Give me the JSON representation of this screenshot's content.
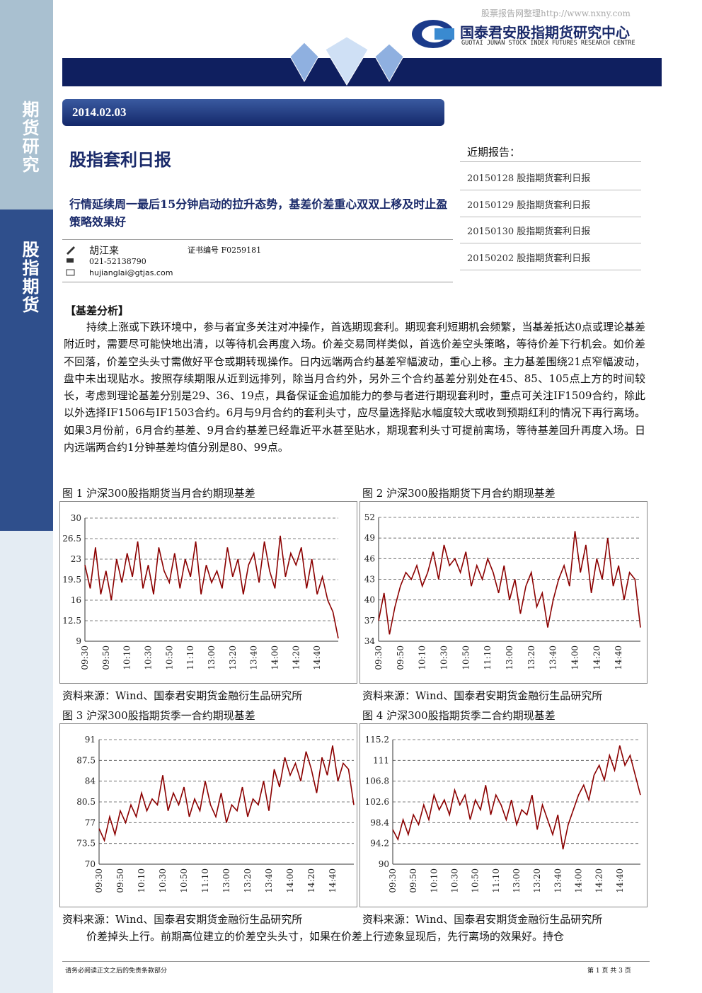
{
  "header": {
    "watermark": "股票报告网整理http://www.nxny.com",
    "logo_cn": "国泰君安股指期货研究中心",
    "logo_en": "GUOTAI JUNAN STOCK INDEX FUTURES RESEARCH CENTRE"
  },
  "sidebar": [
    "期货研究",
    "股指期货"
  ],
  "date": "2014.02.03",
  "title": "股指套利日报",
  "subtitle": "行情延续周一最后15分钟启动的拉升态势，基差价差重心双双上移及时止盈策略效果好",
  "author": {
    "name": "胡江来",
    "cert": "证书编号  F0259181",
    "phone": "021-52138790",
    "email": "hujianglai@gtjas.com"
  },
  "recent": {
    "heading": "近期报告：",
    "items": [
      "20150128 股指期货套利日报",
      "20150129 股指期货套利日报",
      "20150130 股指期货套利日报",
      "20150202 股指期货套利日报"
    ]
  },
  "section_heading": "【基差分析】",
  "paragraph": "持续上涨或下跌环境中，参与者宜多关注对冲操作，首选期现套利。期现套利短期机会频繁，当基差抵达0点或理论基差附近时，需要尽可能快地出清，以等待机会再度入场。价差交易同样类似，首选价差空头策略，等待价差下行机会。如价差不回落，价差空头头寸需做好平仓或期转现操作。日内远端两合约基差窄幅波动，重心上移。主力基差围绕21点窄幅波动，盘中未出现贴水。按照存续期限从近到远排列，除当月合约外，另外三个合约基差分别处在45、85、105点上方的时间较长，考虑到理论基差分别是29、36、19点，具备保证金追加能力的参与者进行期现套利时，重点可关注IF1509合约，除此以外选择IF1506与IF1503合约。6月与9月合约的套利头寸，应尽量选择贴水幅度较大或收到预期红利的情况下再行离场。如果3月份前，6月合约基差、9月合约基差已经靠近平水甚至贴水，期现套利头寸可提前离场，等待基差回升再度入场。日内远端两合约1分钟基差均值分别是80、99点。",
  "continuation": "价差掉头上行。前期高位建立的价差空头头寸，如果在价差上行迹象显现后，先行离场的效果好。持仓",
  "footer": {
    "disclaimer": "请务必阅读正文之后的免责条款部分",
    "page": "第 1 页 共 3 页"
  },
  "chart_data": [
    {
      "type": "line",
      "title": "图 1 沪深300股指期货当月合约期现基差",
      "source": "资料来源：Wind、国泰君安期货金融衍生品研究所",
      "color": "#8b0000",
      "categories": [
        "09:30",
        null,
        null,
        null,
        "09:50",
        null,
        null,
        null,
        "10:10",
        null,
        null,
        null,
        "10:30",
        null,
        null,
        null,
        "10:50",
        null,
        null,
        null,
        "11:10",
        null,
        null,
        null,
        "13:00",
        null,
        null,
        null,
        "13:20",
        null,
        null,
        null,
        "13:40",
        null,
        null,
        null,
        "14:00",
        null,
        null,
        null,
        "14:20",
        null,
        null,
        null,
        "14:40",
        null,
        null,
        null,
        null
      ],
      "values": [
        22,
        18,
        25,
        17,
        21,
        16,
        23,
        19,
        24,
        20,
        26,
        18,
        22,
        17,
        25,
        21,
        19,
        24,
        18,
        23,
        20,
        26,
        17,
        22,
        19,
        21,
        18,
        25,
        20,
        23,
        17,
        22,
        24,
        19,
        26,
        21,
        18,
        27,
        20,
        24,
        22,
        25,
        18,
        23,
        17,
        20,
        16,
        14,
        9.5
      ],
      "ylim": [
        9,
        30
      ],
      "yticks": [
        9,
        12.5,
        16,
        19.5,
        23,
        26.5,
        30
      ],
      "grid": true
    },
    {
      "type": "line",
      "title": "图 2 沪深300股指期货下月合约期现基差",
      "source": "资料来源：Wind、国泰君安期货金融衍生品研究所",
      "color": "#8b0000",
      "categories": [
        "09:30",
        null,
        null,
        null,
        "09:50",
        null,
        null,
        null,
        "10:10",
        null,
        null,
        null,
        "10:30",
        null,
        null,
        null,
        "10:50",
        null,
        null,
        null,
        "11:10",
        null,
        null,
        null,
        "13:00",
        null,
        null,
        null,
        "13:20",
        null,
        null,
        null,
        "13:40",
        null,
        null,
        null,
        "14:00",
        null,
        null,
        null,
        "14:20",
        null,
        null,
        null,
        "14:40",
        null,
        null,
        null,
        null
      ],
      "values": [
        37,
        41,
        35,
        39,
        42,
        44,
        43,
        45,
        42,
        44,
        47,
        43,
        48,
        45,
        46,
        44,
        47,
        42,
        45,
        43,
        46,
        44,
        41,
        45,
        40,
        43,
        38,
        42,
        44,
        39,
        41,
        36,
        40,
        43,
        45,
        42,
        50,
        44,
        48,
        41,
        46,
        43,
        49,
        42,
        45,
        40,
        44,
        43,
        36
      ],
      "ylim": [
        34,
        52
      ],
      "yticks": [
        34,
        37,
        40,
        43,
        46,
        49,
        52
      ],
      "grid": true
    },
    {
      "type": "line",
      "title": "图 3 沪深300股指期货季一合约期现基差",
      "source": "资料来源：Wind、国泰君安期货金融衍生品研究所",
      "color": "#8b0000",
      "categories": [
        "09:30",
        null,
        null,
        null,
        "09:50",
        null,
        null,
        null,
        "10:10",
        null,
        null,
        null,
        "10:30",
        null,
        null,
        null,
        "10:50",
        null,
        null,
        null,
        "11:10",
        null,
        null,
        null,
        "13:00",
        null,
        null,
        null,
        "13:20",
        null,
        null,
        null,
        "13:40",
        null,
        null,
        null,
        "14:00",
        null,
        null,
        null,
        "14:20",
        null,
        null,
        null,
        "14:40",
        null,
        null,
        null,
        null
      ],
      "values": [
        76,
        74,
        78,
        75,
        79,
        77,
        80,
        78,
        82,
        79,
        81,
        80,
        85,
        79,
        82,
        80,
        83,
        78,
        81,
        79,
        84,
        80,
        78,
        82,
        77,
        80,
        79,
        83,
        78,
        81,
        80,
        84,
        79,
        86,
        83,
        88,
        85,
        87,
        84,
        89,
        86,
        82,
        88,
        85,
        90,
        84,
        87,
        86,
        80
      ],
      "ylim": [
        70,
        91
      ],
      "yticks": [
        70,
        73.5,
        77,
        80.5,
        84,
        87.5,
        91
      ],
      "grid": true
    },
    {
      "type": "line",
      "title": "图 4 沪深300股指期货季二合约期现基差",
      "source": "资料来源：Wind、国泰君安期货金融衍生品研究所",
      "color": "#8b0000",
      "categories": [
        "09:30",
        null,
        null,
        null,
        "09:50",
        null,
        null,
        null,
        "10:10",
        null,
        null,
        null,
        "10:30",
        null,
        null,
        null,
        "10:50",
        null,
        null,
        null,
        "11:10",
        null,
        null,
        null,
        "13:00",
        null,
        null,
        null,
        "13:20",
        null,
        null,
        null,
        "13:40",
        null,
        null,
        null,
        "14:00",
        null,
        null,
        null,
        "14:20",
        null,
        null,
        null,
        "14:40",
        null,
        null,
        null,
        null
      ],
      "values": [
        97,
        95,
        99,
        96,
        100,
        98,
        102,
        99,
        104,
        101,
        103,
        100,
        105,
        102,
        104,
        99,
        103,
        101,
        106,
        100,
        104,
        102,
        99,
        103,
        98,
        101,
        100,
        104,
        97,
        102,
        99,
        96,
        100,
        93,
        98,
        101,
        104,
        106,
        103,
        108,
        110,
        107,
        112,
        109,
        114,
        110,
        112,
        108,
        104
      ],
      "ylim": [
        90,
        115.2
      ],
      "yticks": [
        90,
        94.2,
        98.4,
        102.6,
        106.8,
        111,
        115.2
      ],
      "grid": true
    }
  ]
}
